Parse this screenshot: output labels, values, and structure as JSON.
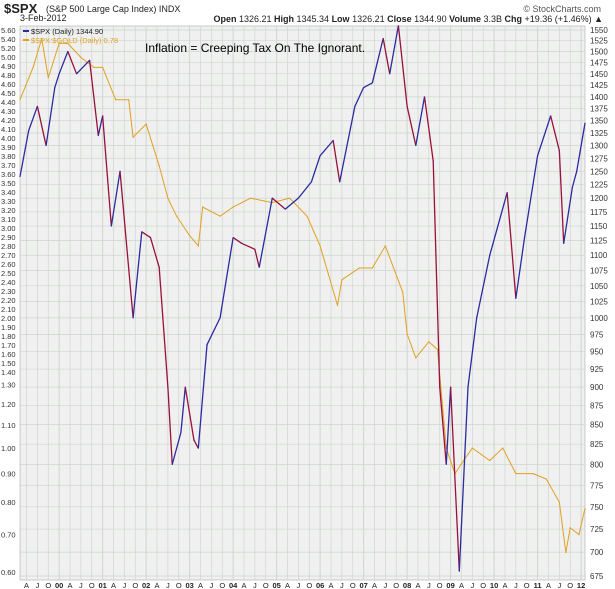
{
  "header": {
    "symbol": "$SPX",
    "description": "(S&P 500 Large Cap Index)",
    "exchange": "INDX",
    "date": "3-Feb-2012",
    "copyright": "© StockCharts.com",
    "stats": [
      {
        "k": "Open",
        "v": "1326.21"
      },
      {
        "k": "High",
        "v": "1345.34"
      },
      {
        "k": "Low",
        "v": "1326.21"
      },
      {
        "k": "Close",
        "v": "1344.90"
      },
      {
        "k": "Volume",
        "v": "3.3B"
      },
      {
        "k": "Chg",
        "v": "+19.36 (+1.46%) ▲"
      }
    ]
  },
  "colors": {
    "spx_up": "#2b2ba0",
    "spx_down": "#99103a",
    "ratio": "#e0a020",
    "grid": "#cdd6cd",
    "plot_bg": "#f0f0f0"
  },
  "chart_data": {
    "type": "line",
    "title": "$SPX (S&P 500 Large Cap Index)",
    "annotation": "Inflation = Creeping Tax On The Ignorant.",
    "legend": [
      {
        "label": "$SPX (Daily) 1344.90",
        "color": "#2b2ba0"
      },
      {
        "label": "$SPX:$GOLD (Daily) 0.78",
        "color": "#e0a020"
      }
    ],
    "legend_position": "top-left",
    "x_range": [
      1999.1,
      2012.09
    ],
    "x_ticks": [
      {
        "t": 1999.25,
        "l": "A"
      },
      {
        "t": 1999.5,
        "l": "J"
      },
      {
        "t": 1999.75,
        "l": "O"
      },
      {
        "t": 2000,
        "l": "00"
      },
      {
        "t": 2000.25,
        "l": "A"
      },
      {
        "t": 2000.5,
        "l": "J"
      },
      {
        "t": 2000.75,
        "l": "O"
      },
      {
        "t": 2001,
        "l": "01"
      },
      {
        "t": 2001.25,
        "l": "A"
      },
      {
        "t": 2001.5,
        "l": "J"
      },
      {
        "t": 2001.75,
        "l": "O"
      },
      {
        "t": 2002,
        "l": "02"
      },
      {
        "t": 2002.25,
        "l": "A"
      },
      {
        "t": 2002.5,
        "l": "J"
      },
      {
        "t": 2002.75,
        "l": "O"
      },
      {
        "t": 2003,
        "l": "03"
      },
      {
        "t": 2003.25,
        "l": "A"
      },
      {
        "t": 2003.5,
        "l": "J"
      },
      {
        "t": 2003.75,
        "l": "O"
      },
      {
        "t": 2004,
        "l": "04"
      },
      {
        "t": 2004.25,
        "l": "A"
      },
      {
        "t": 2004.5,
        "l": "J"
      },
      {
        "t": 2004.75,
        "l": "O"
      },
      {
        "t": 2005,
        "l": "05"
      },
      {
        "t": 2005.25,
        "l": "A"
      },
      {
        "t": 2005.5,
        "l": "J"
      },
      {
        "t": 2005.75,
        "l": "O"
      },
      {
        "t": 2006,
        "l": "06"
      },
      {
        "t": 2006.25,
        "l": "A"
      },
      {
        "t": 2006.5,
        "l": "J"
      },
      {
        "t": 2006.75,
        "l": "O"
      },
      {
        "t": 2007,
        "l": "07"
      },
      {
        "t": 2007.25,
        "l": "A"
      },
      {
        "t": 2007.5,
        "l": "J"
      },
      {
        "t": 2007.75,
        "l": "O"
      },
      {
        "t": 2008,
        "l": "08"
      },
      {
        "t": 2008.25,
        "l": "A"
      },
      {
        "t": 2008.5,
        "l": "J"
      },
      {
        "t": 2008.75,
        "l": "O"
      },
      {
        "t": 2009,
        "l": "09"
      },
      {
        "t": 2009.25,
        "l": "A"
      },
      {
        "t": 2009.5,
        "l": "J"
      },
      {
        "t": 2009.75,
        "l": "O"
      },
      {
        "t": 2010,
        "l": "10"
      },
      {
        "t": 2010.25,
        "l": "A"
      },
      {
        "t": 2010.5,
        "l": "J"
      },
      {
        "t": 2010.75,
        "l": "O"
      },
      {
        "t": 2011,
        "l": "11"
      },
      {
        "t": 2011.25,
        "l": "A"
      },
      {
        "t": 2011.5,
        "l": "J"
      },
      {
        "t": 2011.75,
        "l": "O"
      },
      {
        "t": 2012,
        "l": "12"
      }
    ],
    "y_right": {
      "scale": "log",
      "range": [
        675,
        1550
      ],
      "ticks": [
        1550,
        1525,
        1500,
        1475,
        1450,
        1425,
        1400,
        1375,
        1350,
        1325,
        1300,
        1275,
        1250,
        1225,
        1200,
        1175,
        1150,
        1125,
        1100,
        1075,
        1050,
        1025,
        1000,
        975,
        950,
        925,
        900,
        875,
        850,
        825,
        800,
        775,
        750,
        725,
        700,
        675
      ]
    },
    "y_left": {
      "scale": "log",
      "range": [
        0.6,
        5.6
      ],
      "ticks": [
        "5.60",
        "5.40",
        "5.20",
        "5.00",
        "4.90",
        "4.80",
        "4.60",
        "4.50",
        "4.40",
        "4.30",
        "4.20",
        "4.10",
        "4.00",
        "3.90",
        "3.80",
        "3.70",
        "3.60",
        "3.50",
        "3.40",
        "3.30",
        "3.20",
        "3.10",
        "3.00",
        "2.90",
        "2.80",
        "2.70",
        "2.60",
        "2.50",
        "2.40",
        "2.30",
        "2.20",
        "2.10",
        "2.00",
        "1.90",
        "1.80",
        "1.70",
        "1.60",
        "1.50",
        "1.40",
        "1.30",
        "1.20",
        "1.10",
        "1.00",
        "0.90",
        "0.80",
        "0.70",
        "0.60"
      ]
    },
    "series": [
      {
        "name": "$SPX (Daily)",
        "axis": "right",
        "points": [
          [
            1999.1,
            1240
          ],
          [
            1999.3,
            1330
          ],
          [
            1999.5,
            1380
          ],
          [
            1999.7,
            1300
          ],
          [
            1999.9,
            1420
          ],
          [
            2000.0,
            1450
          ],
          [
            2000.2,
            1500
          ],
          [
            2000.4,
            1450
          ],
          [
            2000.7,
            1480
          ],
          [
            2000.9,
            1320
          ],
          [
            2001.0,
            1360
          ],
          [
            2001.2,
            1150
          ],
          [
            2001.4,
            1250
          ],
          [
            2001.7,
            1000
          ],
          [
            2001.9,
            1140
          ],
          [
            2002.1,
            1130
          ],
          [
            2002.3,
            1080
          ],
          [
            2002.5,
            900
          ],
          [
            2002.6,
            800
          ],
          [
            2002.8,
            840
          ],
          [
            2002.9,
            900
          ],
          [
            2003.1,
            830
          ],
          [
            2003.2,
            820
          ],
          [
            2003.4,
            960
          ],
          [
            2003.7,
            1000
          ],
          [
            2004.0,
            1130
          ],
          [
            2004.2,
            1120
          ],
          [
            2004.5,
            1110
          ],
          [
            2004.6,
            1080
          ],
          [
            2004.9,
            1200
          ],
          [
            2005.2,
            1180
          ],
          [
            2005.5,
            1200
          ],
          [
            2005.8,
            1230
          ],
          [
            2006.0,
            1280
          ],
          [
            2006.3,
            1310
          ],
          [
            2006.45,
            1230
          ],
          [
            2006.8,
            1380
          ],
          [
            2007.0,
            1420
          ],
          [
            2007.2,
            1430
          ],
          [
            2007.45,
            1530
          ],
          [
            2007.6,
            1450
          ],
          [
            2007.8,
            1560
          ],
          [
            2008.0,
            1380
          ],
          [
            2008.2,
            1300
          ],
          [
            2008.4,
            1400
          ],
          [
            2008.6,
            1270
          ],
          [
            2008.75,
            900
          ],
          [
            2008.9,
            800
          ],
          [
            2009.0,
            900
          ],
          [
            2009.2,
            680
          ],
          [
            2009.4,
            900
          ],
          [
            2009.6,
            1000
          ],
          [
            2009.9,
            1100
          ],
          [
            2010.3,
            1210
          ],
          [
            2010.5,
            1030
          ],
          [
            2010.7,
            1130
          ],
          [
            2011.0,
            1280
          ],
          [
            2011.3,
            1360
          ],
          [
            2011.5,
            1290
          ],
          [
            2011.6,
            1120
          ],
          [
            2011.8,
            1220
          ],
          [
            2011.9,
            1250
          ],
          [
            2012.09,
            1345
          ]
        ]
      },
      {
        "name": "$SPX:$GOLD (Daily)",
        "axis": "left",
        "points": [
          [
            1999.1,
            4.2
          ],
          [
            1999.4,
            4.8
          ],
          [
            1999.6,
            5.4
          ],
          [
            1999.75,
            4.6
          ],
          [
            2000.0,
            5.3
          ],
          [
            2000.2,
            5.3
          ],
          [
            2000.5,
            5.0
          ],
          [
            2000.8,
            4.8
          ],
          [
            2001.0,
            4.8
          ],
          [
            2001.3,
            4.2
          ],
          [
            2001.6,
            4.2
          ],
          [
            2001.7,
            3.6
          ],
          [
            2002.0,
            3.8
          ],
          [
            2002.3,
            3.2
          ],
          [
            2002.5,
            2.8
          ],
          [
            2002.7,
            2.6
          ],
          [
            2003.0,
            2.4
          ],
          [
            2003.2,
            2.3
          ],
          [
            2003.3,
            2.7
          ],
          [
            2003.7,
            2.6
          ],
          [
            2004.0,
            2.7
          ],
          [
            2004.4,
            2.8
          ],
          [
            2004.9,
            2.75
          ],
          [
            2005.3,
            2.8
          ],
          [
            2005.7,
            2.6
          ],
          [
            2006.0,
            2.3
          ],
          [
            2006.4,
            1.8
          ],
          [
            2006.5,
            2.0
          ],
          [
            2006.9,
            2.1
          ],
          [
            2007.2,
            2.1
          ],
          [
            2007.5,
            2.3
          ],
          [
            2007.9,
            1.9
          ],
          [
            2008.0,
            1.6
          ],
          [
            2008.2,
            1.45
          ],
          [
            2008.5,
            1.55
          ],
          [
            2008.7,
            1.5
          ],
          [
            2008.9,
            1.0
          ],
          [
            2009.1,
            0.9
          ],
          [
            2009.3,
            0.95
          ],
          [
            2009.5,
            1.0
          ],
          [
            2009.9,
            0.95
          ],
          [
            2010.2,
            1.0
          ],
          [
            2010.5,
            0.9
          ],
          [
            2010.9,
            0.9
          ],
          [
            2011.2,
            0.88
          ],
          [
            2011.5,
            0.8
          ],
          [
            2011.65,
            0.65
          ],
          [
            2011.75,
            0.72
          ],
          [
            2011.95,
            0.7
          ],
          [
            2012.09,
            0.78
          ]
        ]
      }
    ]
  }
}
